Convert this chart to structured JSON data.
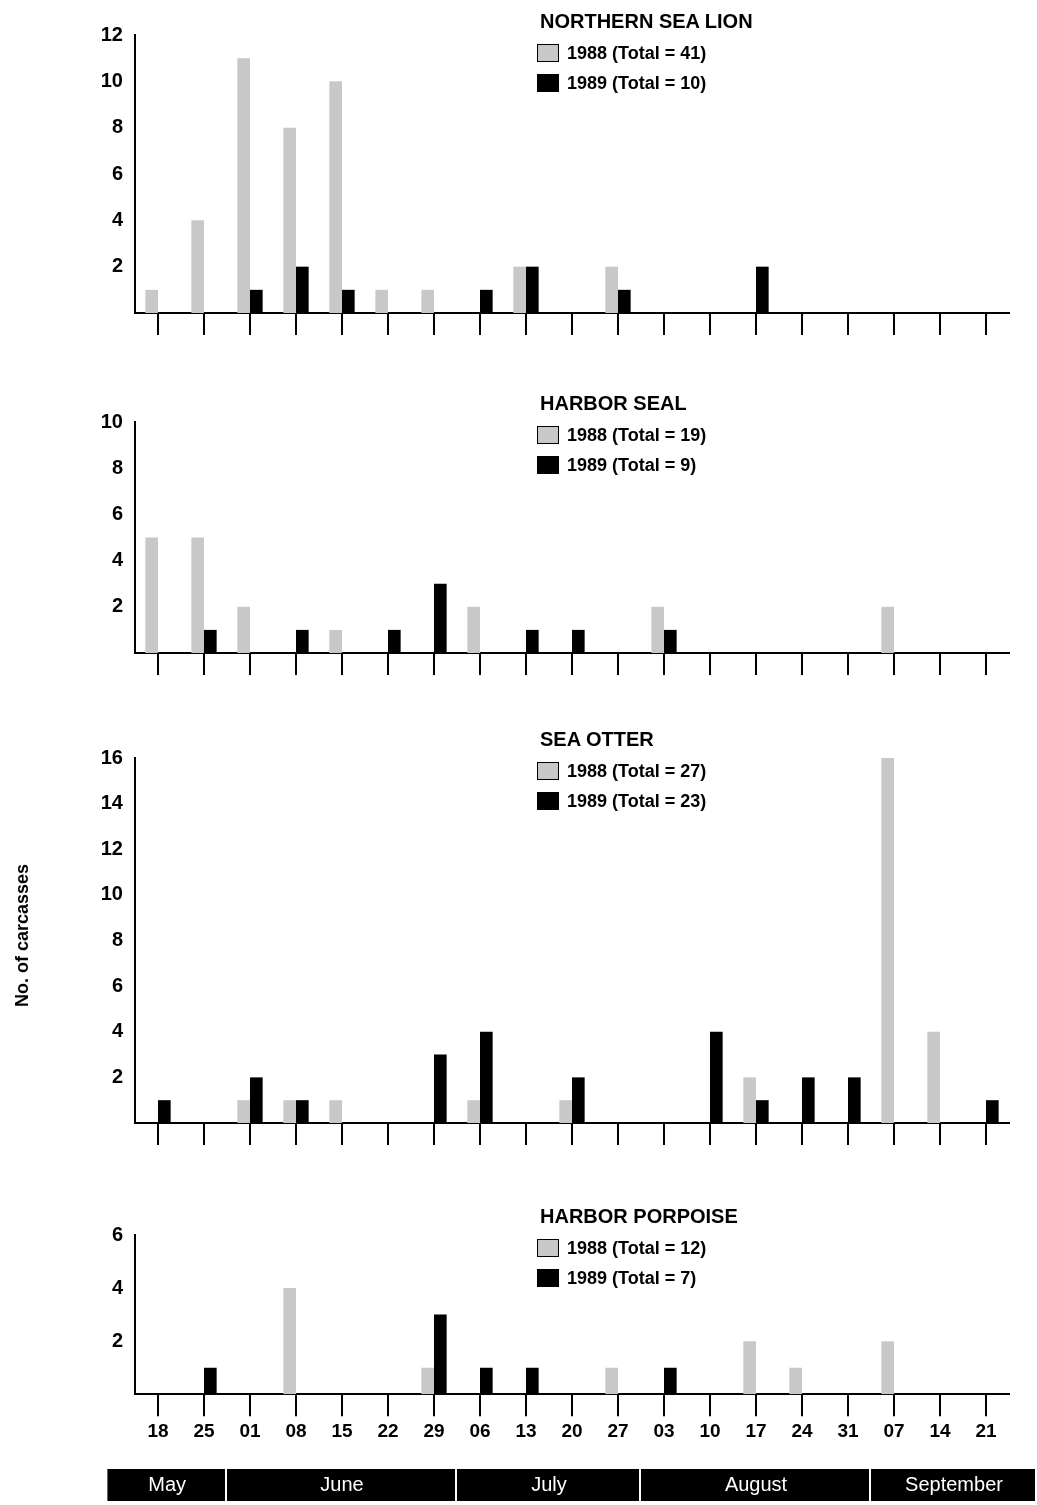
{
  "chart_data": [
    {
      "type": "bar",
      "title": "NORTHERN SEA LION",
      "categories": [
        "18",
        "25",
        "01",
        "08",
        "15",
        "22",
        "29",
        "06",
        "13",
        "20",
        "27",
        "03",
        "10",
        "17",
        "24",
        "31",
        "07",
        "14",
        "21"
      ],
      "series": [
        {
          "name": "1988 (Total = 41)",
          "color": "#c8c8c8",
          "values": [
            1,
            4,
            11,
            8,
            10,
            1,
            1,
            0,
            2,
            0,
            2,
            0,
            0,
            0,
            0,
            0,
            0,
            0,
            0
          ]
        },
        {
          "name": "1989 (Total = 10)",
          "color": "#000000",
          "values": [
            0,
            0,
            1,
            2,
            1,
            0,
            0,
            1,
            2,
            0,
            1,
            0,
            0,
            2,
            0,
            0,
            0,
            0,
            0
          ]
        }
      ],
      "ylim": [
        0,
        12
      ],
      "yticks": [
        2,
        4,
        6,
        8,
        10,
        12
      ],
      "grid": false,
      "legend": "top right",
      "tick_labels": "y"
    },
    {
      "type": "bar",
      "title": "HARBOR SEAL",
      "categories": [
        "18",
        "25",
        "01",
        "08",
        "15",
        "22",
        "29",
        "06",
        "13",
        "20",
        "27",
        "03",
        "10",
        "17",
        "24",
        "31",
        "07",
        "14",
        "21"
      ],
      "series": [
        {
          "name": "1988 (Total = 19)",
          "color": "#c8c8c8",
          "values": [
            5,
            5,
            2,
            0,
            1,
            0,
            0,
            2,
            0,
            0,
            0,
            2,
            0,
            0,
            0,
            0,
            2,
            0,
            0
          ]
        },
        {
          "name": "1989 (Total = 9)",
          "color": "#000000",
          "values": [
            0,
            1,
            0,
            1,
            0,
            1,
            3,
            0,
            1,
            1,
            0,
            1,
            0,
            0,
            0,
            0,
            0,
            0,
            0
          ]
        }
      ],
      "ylim": [
        0,
        10
      ],
      "yticks": [
        2,
        4,
        6,
        8,
        10
      ],
      "grid": false,
      "legend": "top right",
      "tick_labels": "y"
    },
    {
      "type": "bar",
      "title": "SEA OTTER",
      "ylabel": "No. of carcasses",
      "categories": [
        "18",
        "25",
        "01",
        "08",
        "15",
        "22",
        "29",
        "06",
        "13",
        "20",
        "27",
        "03",
        "10",
        "17",
        "24",
        "31",
        "07",
        "14",
        "21"
      ],
      "series": [
        {
          "name": "1988 (Total = 27)",
          "color": "#c8c8c8",
          "values": [
            0,
            0,
            1,
            1,
            1,
            0,
            0,
            1,
            0,
            1,
            0,
            0,
            0,
            2,
            0,
            0,
            16,
            4,
            0
          ]
        },
        {
          "name": "1989 (Total = 23)",
          "color": "#000000",
          "values": [
            1,
            0,
            2,
            1,
            0,
            0,
            3,
            4,
            0,
            2,
            0,
            0,
            4,
            1,
            2,
            2,
            0,
            0,
            1
          ]
        }
      ],
      "ylim": [
        0,
        16
      ],
      "yticks": [
        2,
        4,
        6,
        8,
        10,
        12,
        14,
        16
      ],
      "grid": false,
      "legend": "top right",
      "tick_labels": "y"
    },
    {
      "type": "bar",
      "title": "HARBOR PORPOISE",
      "categories": [
        "18",
        "25",
        "01",
        "08",
        "15",
        "22",
        "29",
        "06",
        "13",
        "20",
        "27",
        "03",
        "10",
        "17",
        "24",
        "31",
        "07",
        "14",
        "21"
      ],
      "series": [
        {
          "name": "1988 (Total = 12)",
          "color": "#c8c8c8",
          "values": [
            0,
            0,
            0,
            4,
            0,
            0,
            1,
            0,
            0,
            0,
            1,
            0,
            0,
            2,
            1,
            0,
            2,
            0,
            0
          ]
        },
        {
          "name": "1989 (Total = 7)",
          "color": "#000000",
          "values": [
            0,
            1,
            0,
            0,
            0,
            0,
            3,
            1,
            1,
            0,
            0,
            1,
            0,
            0,
            0,
            0,
            0,
            0,
            0
          ]
        }
      ],
      "ylim": [
        0,
        6
      ],
      "yticks": [
        2,
        4,
        6
      ],
      "grid": false,
      "legend": "top right",
      "annotations": [
        "May",
        "June",
        "July",
        "August",
        "September"
      ]
    }
  ]
}
